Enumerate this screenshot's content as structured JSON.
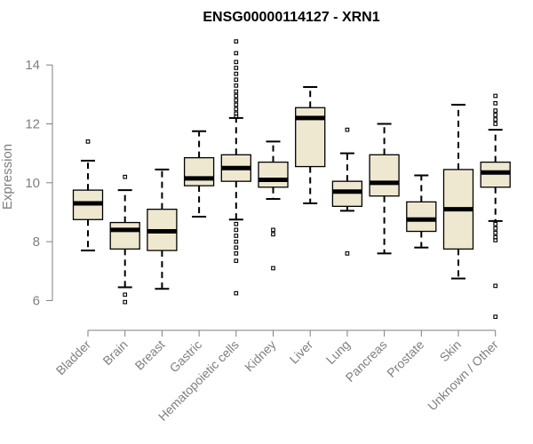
{
  "chart_data": {
    "type": "box",
    "title": "ENSG00000114127 - XRN1",
    "xlabel": "",
    "ylabel": "Expression",
    "ylim": [
      5.2,
      15.0
    ],
    "yticks": [
      6,
      8,
      10,
      12,
      14
    ],
    "grid": false,
    "box_fill": "#efe8d0",
    "axis_color": "#7f7f7f",
    "categories": [
      "Bladder",
      "Brain",
      "Breast",
      "Gastric",
      "Hematopoietic cells",
      "Kidney",
      "Liver",
      "Lung",
      "Pancreas",
      "Prostate",
      "Skin",
      "Unknown / Other"
    ],
    "boxes": [
      {
        "category": "Bladder",
        "whislo": 7.7,
        "q1": 8.75,
        "median": 9.3,
        "q3": 9.75,
        "whishi": 10.75,
        "fliers": [
          11.4
        ]
      },
      {
        "category": "Brain",
        "whislo": 6.45,
        "q1": 7.75,
        "median": 8.4,
        "q3": 8.65,
        "whishi": 9.75,
        "fliers": [
          10.2,
          6.2,
          5.95
        ]
      },
      {
        "category": "Breast",
        "whislo": 6.4,
        "q1": 7.7,
        "median": 8.35,
        "q3": 9.1,
        "whishi": 10.45,
        "fliers": []
      },
      {
        "category": "Gastric",
        "whislo": 8.85,
        "q1": 9.9,
        "median": 10.15,
        "q3": 10.85,
        "whishi": 11.75,
        "fliers": []
      },
      {
        "category": "Hematopoietic cells",
        "whislo": 8.75,
        "q1": 10.05,
        "median": 10.5,
        "q3": 10.95,
        "whishi": 12.2,
        "fliers": [
          14.8,
          14.4,
          14.1,
          13.9,
          13.7,
          13.5,
          13.3,
          13.1,
          12.95,
          12.8,
          12.65,
          12.5,
          12.35,
          12.25,
          8.6,
          8.4,
          8.2,
          8.0,
          7.8,
          7.6,
          7.35,
          6.25
        ]
      },
      {
        "category": "Kidney",
        "whislo": 9.45,
        "q1": 9.85,
        "median": 10.1,
        "q3": 10.7,
        "whishi": 11.4,
        "fliers": [
          8.4,
          8.25,
          7.1
        ]
      },
      {
        "category": "Liver",
        "whislo": 9.3,
        "q1": 10.55,
        "median": 12.2,
        "q3": 12.55,
        "whishi": 13.25,
        "fliers": []
      },
      {
        "category": "Lung",
        "whislo": 9.05,
        "q1": 9.2,
        "median": 9.7,
        "q3": 10.05,
        "whishi": 11.0,
        "fliers": [
          11.8,
          7.6
        ]
      },
      {
        "category": "Pancreas",
        "whislo": 7.6,
        "q1": 9.55,
        "median": 10.0,
        "q3": 10.95,
        "whishi": 12.0,
        "fliers": []
      },
      {
        "category": "Prostate",
        "whislo": 7.8,
        "q1": 8.35,
        "median": 8.75,
        "q3": 9.35,
        "whishi": 10.25,
        "fliers": []
      },
      {
        "category": "Skin",
        "whislo": 6.75,
        "q1": 7.75,
        "median": 9.1,
        "q3": 10.45,
        "whishi": 12.65,
        "fliers": []
      },
      {
        "category": "Unknown / Other",
        "whislo": 8.7,
        "q1": 9.85,
        "median": 10.35,
        "q3": 10.7,
        "whishi": 11.8,
        "fliers": [
          12.95,
          12.7,
          12.45,
          12.3,
          12.15,
          12.0,
          8.6,
          8.45,
          8.3,
          8.15,
          8.05,
          6.5,
          5.45
        ]
      }
    ]
  }
}
